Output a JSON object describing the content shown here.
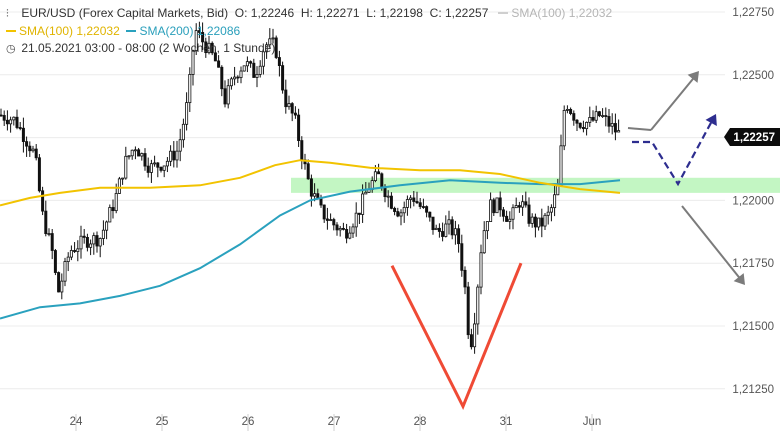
{
  "legend": {
    "symbol": "EUR/USD",
    "source": "(Forex Capital Markets, Bid)",
    "open_label": "O:",
    "open": "1,22246",
    "high_label": "H:",
    "high": "1,22271",
    "low_label": "L:",
    "low": "1,22198",
    "close_label": "C:",
    "close": "1,22257",
    "sma100_faded": "SMA(100)  1,22032",
    "sma100": "SMA(100)",
    "sma100_value": "1,22032",
    "sma200": "SMA(200)",
    "sma200_value": "1,22086",
    "datetime": "21.05.2021 03:00 - 08:00",
    "period": "(2 Wochen, 1 Stunde)"
  },
  "colors": {
    "candles": "#111111",
    "sma100": "#f2c300",
    "sma200": "#2aa1be",
    "zone": "#b9f5b9",
    "v_pattern": "#ef4a35",
    "scenario_up": "#2d2d8f",
    "scenario_gray": "#7b7b7b",
    "price_tag": "#0c0c0c"
  },
  "icons": {
    "chart_type": "candles-icon",
    "clock": "clock-icon"
  },
  "chart_data": {
    "type": "candlestick",
    "y_ticks": [
      "1,22750",
      "1,22500",
      "1,22250",
      "1,22000",
      "1,21750",
      "1,21500",
      "1,21250"
    ],
    "x_ticks": [
      "24",
      "25",
      "26",
      "27",
      "28",
      "31",
      "Jun"
    ],
    "ylim": [
      1.2118,
      1.2285
    ],
    "current_price": "1,22257",
    "support_zone": [
      1.2203,
      1.2209
    ],
    "sma200_path": [
      [
        0,
        1.2153
      ],
      [
        40,
        1.21575
      ],
      [
        80,
        1.2159
      ],
      [
        120,
        1.2162
      ],
      [
        160,
        1.2166
      ],
      [
        200,
        1.2173
      ],
      [
        240,
        1.21825
      ],
      [
        280,
        1.2194
      ],
      [
        310,
        1.22
      ],
      [
        350,
        1.22035
      ],
      [
        400,
        1.2206
      ],
      [
        450,
        1.2208
      ],
      [
        500,
        1.2207
      ],
      [
        540,
        1.22065
      ],
      [
        580,
        1.22065
      ],
      [
        620,
        1.2208
      ]
    ],
    "sma100_path": [
      [
        0,
        1.2198
      ],
      [
        30,
        1.2201
      ],
      [
        60,
        1.2203
      ],
      [
        100,
        1.2205
      ],
      [
        150,
        1.2205
      ],
      [
        200,
        1.2206
      ],
      [
        240,
        1.2209
      ],
      [
        275,
        1.2214
      ],
      [
        300,
        1.2216
      ],
      [
        330,
        1.2215
      ],
      [
        370,
        1.2213
      ],
      [
        420,
        1.2212
      ],
      [
        460,
        1.2212
      ],
      [
        500,
        1.22105
      ],
      [
        540,
        1.2207
      ],
      [
        580,
        1.22045
      ],
      [
        620,
        1.2203
      ]
    ],
    "candle_path": [
      [
        0,
        1.2234
      ],
      [
        15,
        1.2232
      ],
      [
        25,
        1.2225
      ],
      [
        35,
        1.2218
      ],
      [
        42,
        1.2195
      ],
      [
        52,
        1.218
      ],
      [
        58,
        1.2163
      ],
      [
        70,
        1.218
      ],
      [
        85,
        1.2184
      ],
      [
        100,
        1.2185
      ],
      [
        115,
        1.22
      ],
      [
        125,
        1.2215
      ],
      [
        135,
        1.2222
      ],
      [
        150,
        1.2213
      ],
      [
        165,
        1.2215
      ],
      [
        178,
        1.222
      ],
      [
        188,
        1.224
      ],
      [
        195,
        1.2268
      ],
      [
        205,
        1.2262
      ],
      [
        215,
        1.2256
      ],
      [
        225,
        1.224
      ],
      [
        235,
        1.225
      ],
      [
        245,
        1.2255
      ],
      [
        255,
        1.225
      ],
      [
        265,
        1.2262
      ],
      [
        275,
        1.2262
      ],
      [
        285,
        1.224
      ],
      [
        295,
        1.2232
      ],
      [
        302,
        1.2218
      ],
      [
        310,
        1.2205
      ],
      [
        322,
        1.2195
      ],
      [
        335,
        1.219
      ],
      [
        345,
        1.2187
      ],
      [
        358,
        1.2195
      ],
      [
        368,
        1.2205
      ],
      [
        378,
        1.221
      ],
      [
        390,
        1.22
      ],
      [
        400,
        1.2195
      ],
      [
        412,
        1.2202
      ],
      [
        425,
        1.2195
      ],
      [
        437,
        1.2187
      ],
      [
        448,
        1.219
      ],
      [
        458,
        1.2185
      ],
      [
        465,
        1.2165
      ],
      [
        470,
        1.214
      ],
      [
        475,
        1.2155
      ],
      [
        482,
        1.2185
      ],
      [
        490,
        1.2198
      ],
      [
        500,
        1.2198
      ],
      [
        510,
        1.2192
      ],
      [
        520,
        1.22
      ],
      [
        530,
        1.2192
      ],
      [
        540,
        1.219
      ],
      [
        550,
        1.2195
      ],
      [
        558,
        1.2205
      ],
      [
        565,
        1.224
      ],
      [
        578,
        1.2231
      ],
      [
        590,
        1.2231
      ],
      [
        600,
        1.2234
      ],
      [
        610,
        1.223
      ],
      [
        620,
        1.2226
      ]
    ],
    "v_pattern": [
      [
        1.2174,
        392
      ],
      [
        1.2118,
        463
      ],
      [
        1.2175,
        521
      ]
    ],
    "scenarios": [
      "up",
      "dashed-dip-then-up",
      "down"
    ]
  }
}
